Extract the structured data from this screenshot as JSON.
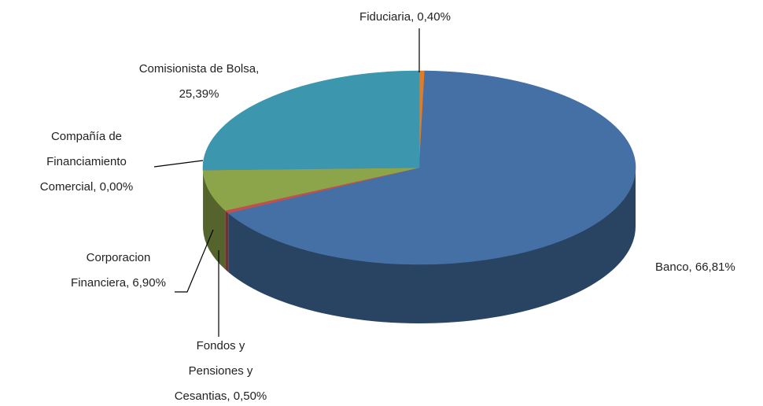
{
  "chart_data": {
    "type": "pie3d",
    "values": [
      0.4,
      66.81,
      0.5,
      6.9,
      0.0,
      25.39
    ],
    "value_labels": [
      "Fiduciaria, 0,40%",
      "Banco, 66,81%",
      "Fondos y Pensiones y Cesantias, 0,50%",
      "Corporacion Financiera, 6,90%",
      "Compañía de Financiamiento Comercial, 0,00%",
      "Comisionista de Bolsa, 25,39%"
    ],
    "colors": [
      "#e07b2a",
      "#4470a5",
      "#c0504d",
      "#8da54a",
      "#7f63a2",
      "#3c96ae"
    ]
  }
}
